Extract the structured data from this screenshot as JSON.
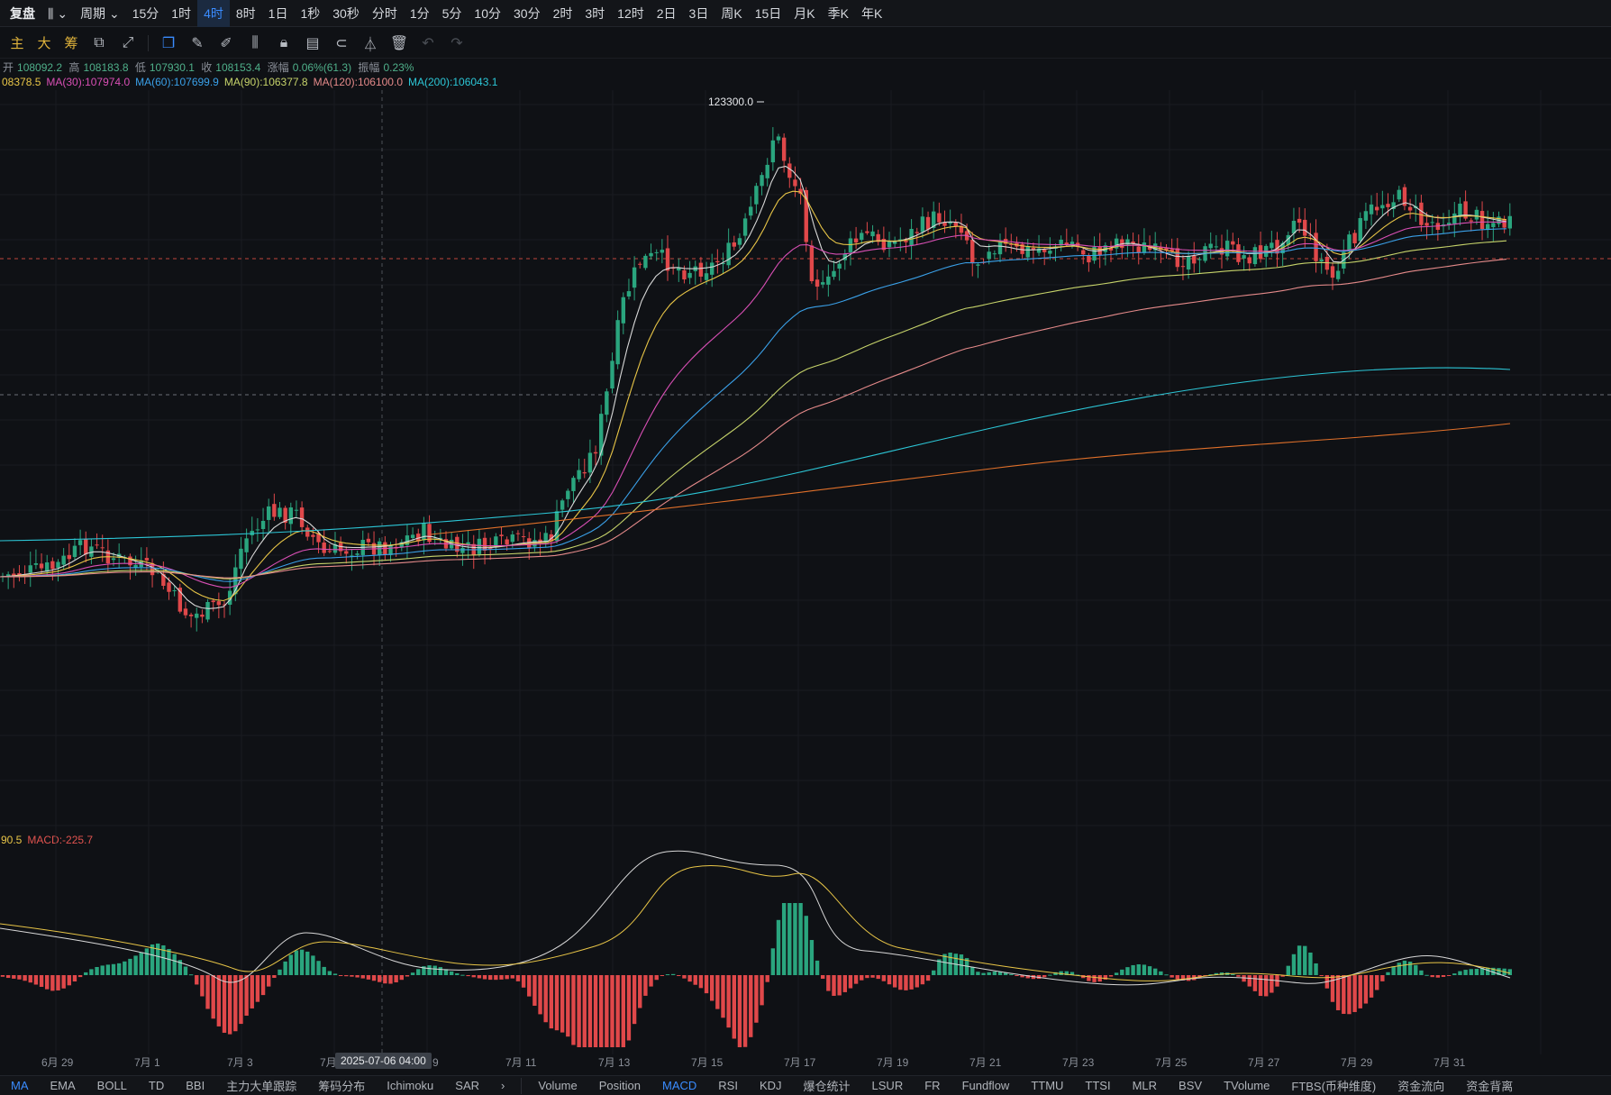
{
  "topbar": {
    "items": [
      {
        "label": "复盘",
        "active": false
      },
      {
        "label": "⫼ ⌄",
        "active": false
      },
      {
        "label": "周期 ⌄",
        "active": false
      },
      {
        "label": "15分",
        "active": false
      },
      {
        "label": "1时",
        "active": false
      },
      {
        "label": "4时",
        "active": true
      },
      {
        "label": "8时",
        "active": false
      },
      {
        "label": "1日",
        "active": false
      },
      {
        "label": "1秒",
        "active": false
      },
      {
        "label": "30秒",
        "active": false
      },
      {
        "label": "分时",
        "active": false
      },
      {
        "label": "1分",
        "active": false
      },
      {
        "label": "5分",
        "active": false
      },
      {
        "label": "10分",
        "active": false
      },
      {
        "label": "30分",
        "active": false
      },
      {
        "label": "2时",
        "active": false
      },
      {
        "label": "3时",
        "active": false
      },
      {
        "label": "12时",
        "active": false
      },
      {
        "label": "2日",
        "active": false
      },
      {
        "label": "3日",
        "active": false
      },
      {
        "label": "周K",
        "active": false
      },
      {
        "label": "15日",
        "active": false
      },
      {
        "label": "月K",
        "active": false
      },
      {
        "label": "季K",
        "active": false
      },
      {
        "label": "年K",
        "active": false
      }
    ]
  },
  "toolbar": {
    "labels": [
      "主",
      "大",
      "筹"
    ],
    "tools": [
      {
        "icon": "indicator-icon",
        "glyph": "⧉"
      },
      {
        "icon": "ruler-icon",
        "glyph": "⤢"
      },
      {
        "icon": "copy-icon",
        "glyph": "❐"
      },
      {
        "icon": "pencil-icon",
        "glyph": "✎"
      },
      {
        "icon": "brush-icon",
        "glyph": "✐"
      },
      {
        "icon": "candles-icon",
        "glyph": "⫼"
      },
      {
        "icon": "lock-icon",
        "glyph": "🔒︎"
      },
      {
        "icon": "note-icon",
        "glyph": "▤"
      },
      {
        "icon": "magnet-icon",
        "glyph": "⊂"
      },
      {
        "icon": "filter-icon",
        "glyph": "⏃"
      },
      {
        "icon": "trash-icon",
        "glyph": "🗑︎"
      },
      {
        "icon": "undo-icon",
        "glyph": "↶"
      },
      {
        "icon": "redo-icon",
        "glyph": "↷"
      }
    ]
  },
  "ohlc": {
    "open_label": "开",
    "open": "108092.2",
    "high_label": "高",
    "high": "108183.8",
    "low_label": "低",
    "low": "107930.1",
    "close_label": "收",
    "close": "108153.4",
    "change_label": "涨幅",
    "change": "0.06%(61.3)",
    "amp_label": "振幅",
    "amp": "0.23%"
  },
  "ma_legend": [
    {
      "text": "08378.5",
      "color": "#e8c547"
    },
    {
      "text": "MA(30):107974.0",
      "color": "#d94fb5"
    },
    {
      "text": "MA(60):107699.9",
      "color": "#3aa0e8"
    },
    {
      "text": "MA(90):106377.8",
      "color": "#c6d36a"
    },
    {
      "text": "MA(120):106100.0",
      "color": "#e58a8a"
    },
    {
      "text": "MA(200):106043.1",
      "color": "#2cc6d6"
    }
  ],
  "macd_legend": [
    {
      "text": "90.5",
      "color": "#e8c547"
    },
    {
      "text": "MACD:-225.7",
      "color": "#e0534f"
    }
  ],
  "high_marker": "123300.0",
  "crosshair_date": "2025-07-06 04:00",
  "x_axis": [
    "6月 29",
    "7月 1",
    "7月 3",
    "7月",
    "7月 9",
    "7月 11",
    "7月 13",
    "7月 15",
    "7月 17",
    "7月 19",
    "7月 21",
    "7月 23",
    "7月 25",
    "7月 27",
    "7月 29",
    "7月 31"
  ],
  "bottom_left": [
    {
      "label": "MA",
      "active": true
    },
    {
      "label": "EMA",
      "active": false
    },
    {
      "label": "BOLL",
      "active": false
    },
    {
      "label": "TD",
      "active": false
    },
    {
      "label": "BBI",
      "active": false
    },
    {
      "label": "主力大单跟踪",
      "active": false
    },
    {
      "label": "筹码分布",
      "active": false
    },
    {
      "label": "Ichimoku",
      "active": false
    },
    {
      "label": "SAR",
      "active": false
    },
    {
      "label": "›",
      "active": false
    }
  ],
  "bottom_right": [
    {
      "label": "Volume",
      "active": false
    },
    {
      "label": "Position",
      "active": false
    },
    {
      "label": "MACD",
      "active": true
    },
    {
      "label": "RSI",
      "active": false
    },
    {
      "label": "KDJ",
      "active": false
    },
    {
      "label": "爆仓统计",
      "active": false
    },
    {
      "label": "LSUR",
      "active": false
    },
    {
      "label": "FR",
      "active": false
    },
    {
      "label": "Fundflow",
      "active": false
    },
    {
      "label": "TTMU",
      "active": false
    },
    {
      "label": "TTSI",
      "active": false
    },
    {
      "label": "MLR",
      "active": false
    },
    {
      "label": "BSV",
      "active": false
    },
    {
      "label": "TVolume",
      "active": false
    },
    {
      "label": "FTBS(币种维度)",
      "active": false
    },
    {
      "label": "资金流向",
      "active": false
    },
    {
      "label": "资金背离",
      "active": false
    }
  ],
  "colors": {
    "up": "#2aa57e",
    "down": "#e0484a",
    "bg": "#0f1115"
  },
  "chart_data": {
    "type": "candlestick",
    "price_range": [
      95000,
      127000
    ],
    "high": 123300.0,
    "last_close": 108153.4,
    "series": [
      {
        "name": "MA(30)",
        "value": 107974.0
      },
      {
        "name": "MA(60)",
        "value": 107699.9
      },
      {
        "name": "MA(90)",
        "value": 106377.8
      },
      {
        "name": "MA(120)",
        "value": 106100.0
      },
      {
        "name": "MA(200)",
        "value": 106043.1
      }
    ],
    "macd": {
      "value": -225.7
    }
  }
}
